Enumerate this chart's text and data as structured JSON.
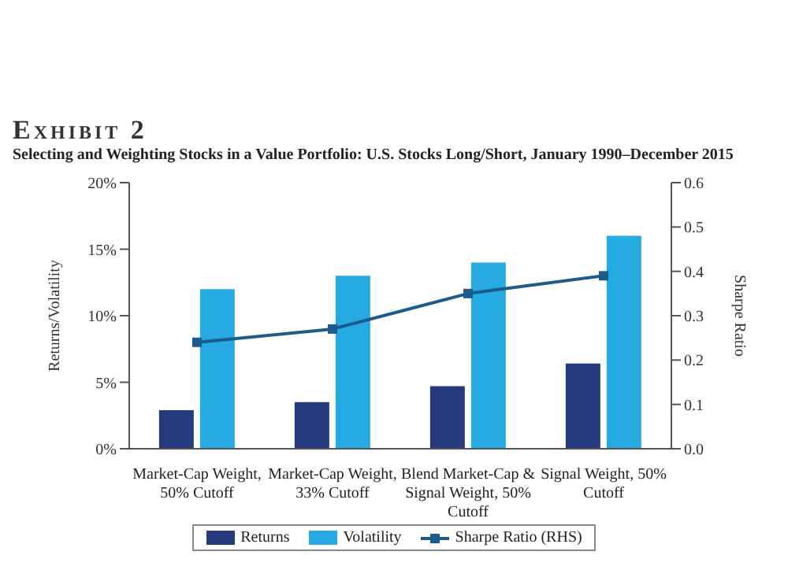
{
  "chart_data": {
    "type": "bar",
    "title": "Exhibit 2",
    "subtitle": "Selecting and Weighting Stocks in a Value Portfolio: U.S. Stocks Long/Short, January 1990–December 2015",
    "categories": [
      "Market-Cap Weight, 50% Cutoff",
      "Market-Cap Weight, 33% Cutoff",
      "Blend Market-Cap & Signal Weight, 50% Cutoff",
      "Signal Weight, 50% Cutoff"
    ],
    "series": [
      {
        "name": "Returns",
        "color": "#263b7c",
        "values": [
          2.9,
          3.5,
          4.7,
          6.4
        ]
      },
      {
        "name": "Volatility",
        "color": "#27aae1",
        "values": [
          12,
          13,
          14,
          16
        ]
      },
      {
        "name": "Sharpe Ratio (RHS)",
        "type": "line",
        "axis": "y2",
        "color": "#1b5c8c",
        "values": [
          0.24,
          0.27,
          0.35,
          0.39
        ]
      }
    ],
    "ylabel": "Returns/Volatility",
    "y2label": "Sharpe Ratio",
    "ylim": [
      0,
      20
    ],
    "yticks": [
      {
        "value": 0,
        "label": "0%"
      },
      {
        "value": 5,
        "label": "5%"
      },
      {
        "value": 10,
        "label": "10%"
      },
      {
        "value": 15,
        "label": "15%"
      },
      {
        "value": 20,
        "label": "20%"
      }
    ],
    "y2lim": [
      0,
      0.6
    ],
    "y2ticks": [
      {
        "value": 0,
        "label": "0.0"
      },
      {
        "value": 0.1,
        "label": "0.1"
      },
      {
        "value": 0.2,
        "label": "0.2"
      },
      {
        "value": 0.3,
        "label": "0.3"
      },
      {
        "value": 0.4,
        "label": "0.4"
      },
      {
        "value": 0.5,
        "label": "0.5"
      },
      {
        "value": 0.6,
        "label": "0.6"
      }
    ],
    "grid": false,
    "legend": "bottom",
    "marker": "square"
  }
}
